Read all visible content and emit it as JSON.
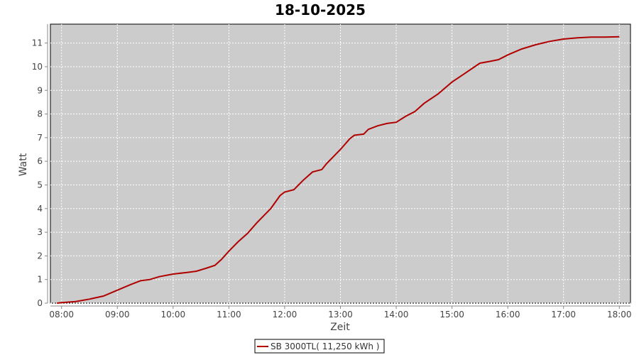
{
  "chart_data": {
    "type": "line",
    "title": "18-10-2025",
    "xlabel": "Zeit",
    "ylabel": "Watt",
    "xlim": [
      "07:48",
      "18:12"
    ],
    "ylim": [
      0,
      11.8
    ],
    "x_ticks": [
      "08:00",
      "09:00",
      "10:00",
      "11:00",
      "12:00",
      "13:00",
      "14:00",
      "15:00",
      "16:00",
      "17:00",
      "18:00"
    ],
    "y_ticks": [
      0,
      1,
      2,
      3,
      4,
      5,
      6,
      7,
      8,
      9,
      10,
      11
    ],
    "grid": true,
    "legend_position": "bottom",
    "colors": {
      "series": "#b00000",
      "plot_background": "#cccccc",
      "grid": "#ffffff"
    },
    "series": [
      {
        "name": "SB 3000TL( 11,250 kWh )",
        "x": [
          "07:55",
          "08:00",
          "08:15",
          "08:30",
          "08:45",
          "09:00",
          "09:15",
          "09:25",
          "09:35",
          "09:45",
          "10:00",
          "10:15",
          "10:25",
          "10:35",
          "10:45",
          "10:52",
          "11:00",
          "11:10",
          "11:20",
          "11:30",
          "11:45",
          "11:55",
          "12:00",
          "12:10",
          "12:20",
          "12:30",
          "12:40",
          "12:45",
          "13:00",
          "13:10",
          "13:15",
          "13:25",
          "13:30",
          "13:40",
          "13:50",
          "14:00",
          "14:10",
          "14:20",
          "14:30",
          "14:45",
          "15:00",
          "15:15",
          "15:30",
          "15:40",
          "15:50",
          "16:00",
          "16:15",
          "16:30",
          "16:45",
          "17:00",
          "17:15",
          "17:30",
          "17:45",
          "18:00"
        ],
        "values": [
          0,
          0.02,
          0.07,
          0.17,
          0.3,
          0.55,
          0.8,
          0.95,
          1.0,
          1.12,
          1.23,
          1.3,
          1.35,
          1.47,
          1.6,
          1.85,
          2.2,
          2.6,
          2.95,
          3.4,
          4.0,
          4.55,
          4.7,
          4.8,
          5.2,
          5.55,
          5.65,
          5.9,
          6.5,
          6.95,
          7.1,
          7.15,
          7.35,
          7.5,
          7.6,
          7.65,
          7.9,
          8.1,
          8.45,
          8.85,
          9.35,
          9.75,
          10.15,
          10.22,
          10.3,
          10.5,
          10.75,
          10.93,
          11.07,
          11.17,
          11.22,
          11.25,
          11.25,
          11.27
        ]
      }
    ]
  }
}
